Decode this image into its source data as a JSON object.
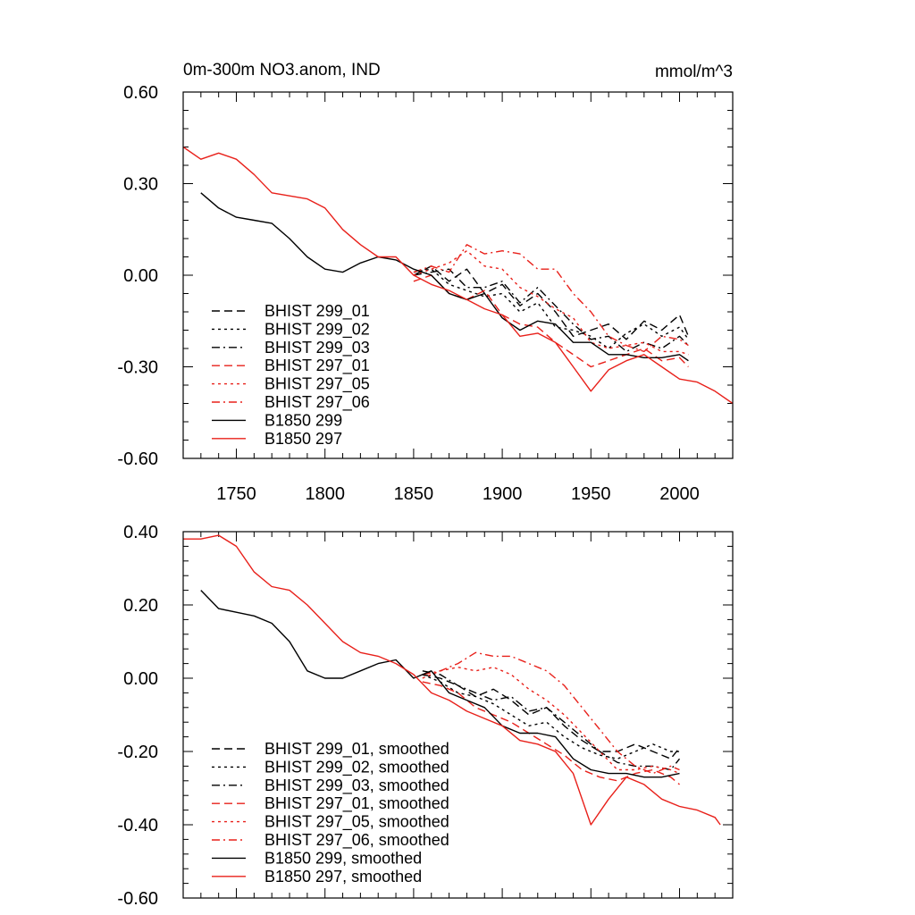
{
  "chart_data": [
    {
      "type": "line",
      "title": "0m-300m NO3.anom, IND",
      "units": "mmol/m^3",
      "xlim": [
        1720,
        2030
      ],
      "ylim": [
        -0.6,
        0.6
      ],
      "x_ticks": [
        1750,
        1800,
        1850,
        1900,
        1950,
        2000
      ],
      "x_tick_labels": [
        "1750",
        "1800",
        "1850",
        "1900",
        "1950",
        "2000"
      ],
      "y_ticks": [
        0.6,
        0.3,
        0.0,
        -0.3,
        -0.6
      ],
      "y_tick_labels": [
        "0.60",
        "0.30",
        "0.00",
        "-0.30",
        "-0.60"
      ],
      "legend_position": "lower-left",
      "series": [
        {
          "name": "BHIST 299_01",
          "color": "#000000",
          "dash": "dash",
          "x": [
            1850,
            1860,
            1870,
            1880,
            1890,
            1900,
            1910,
            1920,
            1930,
            1940,
            1950,
            1960,
            1970,
            1980,
            1990,
            2000,
            2005
          ],
          "values": [
            0.0,
            0.03,
            -0.02,
            0.02,
            -0.06,
            -0.03,
            -0.1,
            -0.06,
            -0.12,
            -0.2,
            -0.18,
            -0.16,
            -0.21,
            -0.15,
            -0.18,
            -0.13,
            -0.2
          ]
        },
        {
          "name": "BHIST 299_02",
          "color": "#000000",
          "dash": "dot",
          "x": [
            1850,
            1860,
            1870,
            1880,
            1890,
            1900,
            1910,
            1920,
            1930,
            1940,
            1950,
            1960,
            1970,
            1980,
            1990,
            2000,
            2005
          ],
          "values": [
            0.01,
            0.02,
            -0.03,
            -0.05,
            -0.07,
            -0.06,
            -0.12,
            -0.09,
            -0.17,
            -0.18,
            -0.2,
            -0.24,
            -0.19,
            -0.16,
            -0.2,
            -0.17,
            -0.21
          ]
        },
        {
          "name": "BHIST 299_03",
          "color": "#000000",
          "dash": "dashdot",
          "x": [
            1850,
            1860,
            1870,
            1880,
            1890,
            1900,
            1910,
            1920,
            1930,
            1940,
            1950,
            1960,
            1970,
            1980,
            1990,
            2000,
            2005
          ],
          "values": [
            0.0,
            0.01,
            0.02,
            -0.04,
            -0.04,
            -0.02,
            -0.09,
            -0.04,
            -0.1,
            -0.16,
            -0.21,
            -0.2,
            -0.25,
            -0.22,
            -0.24,
            -0.2,
            -0.23
          ]
        },
        {
          "name": "BHIST 297_01",
          "color": "#e8201a",
          "dash": "dash",
          "x": [
            1850,
            1860,
            1870,
            1880,
            1890,
            1900,
            1910,
            1920,
            1930,
            1940,
            1950,
            1960,
            1970,
            1980,
            1990,
            2000,
            2005
          ],
          "values": [
            -0.02,
            0.0,
            -0.06,
            -0.08,
            -0.05,
            -0.13,
            -0.16,
            -0.17,
            -0.22,
            -0.26,
            -0.3,
            -0.28,
            -0.26,
            -0.24,
            -0.28,
            -0.27,
            -0.3
          ]
        },
        {
          "name": "BHIST 297_05",
          "color": "#e8201a",
          "dash": "dot",
          "x": [
            1850,
            1860,
            1870,
            1880,
            1890,
            1900,
            1910,
            1920,
            1930,
            1940,
            1950,
            1960,
            1970,
            1980,
            1990,
            2000,
            2005
          ],
          "values": [
            0.0,
            0.02,
            0.04,
            0.08,
            0.03,
            0.02,
            -0.04,
            -0.07,
            -0.11,
            -0.14,
            -0.22,
            -0.24,
            -0.23,
            -0.22,
            -0.25,
            -0.25,
            -0.26
          ]
        },
        {
          "name": "BHIST 297_06",
          "color": "#e8201a",
          "dash": "dashdot",
          "x": [
            1850,
            1860,
            1870,
            1880,
            1890,
            1900,
            1910,
            1920,
            1930,
            1940,
            1950,
            1960,
            1970,
            1980,
            1990,
            2000,
            2005
          ],
          "values": [
            0.01,
            0.03,
            0.01,
            0.1,
            0.07,
            0.08,
            0.07,
            0.02,
            0.02,
            -0.06,
            -0.12,
            -0.2,
            -0.23,
            -0.25,
            -0.2,
            -0.21,
            -0.23
          ]
        },
        {
          "name": "B1850 299",
          "color": "#000000",
          "dash": "solid",
          "x": [
            1730,
            1740,
            1750,
            1760,
            1770,
            1780,
            1790,
            1800,
            1810,
            1820,
            1830,
            1840,
            1850,
            1860,
            1870,
            1880,
            1890,
            1900,
            1910,
            1920,
            1930,
            1940,
            1950,
            1960,
            1970,
            1980,
            1990,
            2000,
            2005
          ],
          "values": [
            0.27,
            0.22,
            0.19,
            0.18,
            0.17,
            0.12,
            0.06,
            0.02,
            0.01,
            0.04,
            0.06,
            0.05,
            0.02,
            0.0,
            -0.06,
            -0.08,
            -0.06,
            -0.14,
            -0.18,
            -0.15,
            -0.16,
            -0.22,
            -0.22,
            -0.26,
            -0.26,
            -0.27,
            -0.27,
            -0.26,
            -0.28
          ]
        },
        {
          "name": "B1850 297",
          "color": "#e8201a",
          "dash": "solid",
          "x": [
            1720,
            1730,
            1740,
            1750,
            1760,
            1770,
            1780,
            1790,
            1800,
            1810,
            1820,
            1830,
            1840,
            1850,
            1860,
            1870,
            1880,
            1890,
            1900,
            1910,
            1920,
            1930,
            1940,
            1950,
            1960,
            1970,
            1980,
            1990,
            2000,
            2010,
            2020,
            2030
          ],
          "values": [
            0.42,
            0.38,
            0.4,
            0.38,
            0.33,
            0.27,
            0.26,
            0.25,
            0.22,
            0.15,
            0.1,
            0.06,
            0.06,
            0.0,
            -0.03,
            -0.05,
            -0.08,
            -0.11,
            -0.13,
            -0.2,
            -0.19,
            -0.22,
            -0.3,
            -0.38,
            -0.31,
            -0.28,
            -0.26,
            -0.3,
            -0.34,
            -0.35,
            -0.38,
            -0.42
          ]
        }
      ]
    },
    {
      "type": "line",
      "title": "",
      "xlim": [
        1720,
        2030
      ],
      "ylim": [
        -0.6,
        0.4
      ],
      "y_ticks": [
        0.4,
        0.2,
        0.0,
        -0.2,
        -0.4,
        -0.6
      ],
      "y_tick_labels": [
        "0.40",
        "0.20",
        "0.00",
        "-0.20",
        "-0.40",
        "-0.60"
      ],
      "legend_position": "lower-left",
      "series": [
        {
          "name": "BHIST 299_01, smoothed",
          "color": "#000000",
          "dash": "dash",
          "x": [
            1855,
            1865,
            1875,
            1885,
            1895,
            1905,
            1915,
            1925,
            1935,
            1945,
            1955,
            1965,
            1975,
            1985,
            1995,
            2000
          ],
          "values": [
            0.01,
            0.0,
            -0.02,
            -0.05,
            -0.03,
            -0.06,
            -0.1,
            -0.08,
            -0.13,
            -0.17,
            -0.2,
            -0.2,
            -0.18,
            -0.2,
            -0.22,
            -0.19
          ]
        },
        {
          "name": "BHIST 299_02, smoothed",
          "color": "#000000",
          "dash": "dot",
          "x": [
            1855,
            1865,
            1875,
            1885,
            1895,
            1905,
            1915,
            1925,
            1935,
            1945,
            1955,
            1965,
            1975,
            1985,
            1995,
            2000
          ],
          "values": [
            0.01,
            -0.01,
            -0.04,
            -0.05,
            -0.07,
            -0.1,
            -0.13,
            -0.12,
            -0.16,
            -0.19,
            -0.21,
            -0.22,
            -0.2,
            -0.18,
            -0.2,
            -0.2
          ]
        },
        {
          "name": "BHIST 299_03, smoothed",
          "color": "#000000",
          "dash": "dashdot",
          "x": [
            1855,
            1865,
            1875,
            1885,
            1895,
            1905,
            1915,
            1925,
            1935,
            1945,
            1955,
            1965,
            1975,
            1985,
            1995,
            2000
          ],
          "values": [
            0.02,
            0.01,
            -0.02,
            -0.04,
            -0.06,
            -0.05,
            -0.09,
            -0.08,
            -0.12,
            -0.16,
            -0.2,
            -0.23,
            -0.24,
            -0.24,
            -0.25,
            -0.22
          ]
        },
        {
          "name": "BHIST 297_01, smoothed",
          "color": "#e8201a",
          "dash": "dash",
          "x": [
            1855,
            1865,
            1875,
            1885,
            1895,
            1905,
            1915,
            1925,
            1935,
            1945,
            1955,
            1965,
            1975,
            1985,
            1995,
            2000
          ],
          "values": [
            -0.01,
            -0.02,
            -0.04,
            -0.08,
            -0.1,
            -0.12,
            -0.15,
            -0.18,
            -0.21,
            -0.25,
            -0.27,
            -0.28,
            -0.26,
            -0.25,
            -0.27,
            -0.29
          ]
        },
        {
          "name": "BHIST 297_05, smoothed",
          "color": "#e8201a",
          "dash": "dot",
          "x": [
            1855,
            1865,
            1875,
            1885,
            1895,
            1905,
            1915,
            1925,
            1935,
            1945,
            1955,
            1965,
            1975,
            1985,
            1995,
            2000
          ],
          "values": [
            0.0,
            0.02,
            0.03,
            0.02,
            0.03,
            0.01,
            -0.03,
            -0.06,
            -0.1,
            -0.15,
            -0.2,
            -0.25,
            -0.25,
            -0.24,
            -0.25,
            -0.26
          ]
        },
        {
          "name": "BHIST 297_06, smoothed",
          "color": "#e8201a",
          "dash": "dashdot",
          "x": [
            1855,
            1865,
            1875,
            1885,
            1895,
            1905,
            1915,
            1925,
            1935,
            1945,
            1955,
            1965,
            1975,
            1985,
            1995,
            2000
          ],
          "values": [
            0.01,
            0.02,
            0.04,
            0.07,
            0.06,
            0.06,
            0.04,
            0.02,
            -0.02,
            -0.08,
            -0.14,
            -0.2,
            -0.24,
            -0.26,
            -0.24,
            -0.25
          ]
        },
        {
          "name": "B1850 299, smoothed",
          "color": "#000000",
          "dash": "solid",
          "x": [
            1730,
            1740,
            1750,
            1760,
            1770,
            1780,
            1790,
            1800,
            1810,
            1820,
            1830,
            1840,
            1850,
            1860,
            1870,
            1880,
            1890,
            1900,
            1910,
            1920,
            1930,
            1940,
            1950,
            1960,
            1970,
            1980,
            1990,
            2000
          ],
          "values": [
            0.24,
            0.19,
            0.18,
            0.17,
            0.15,
            0.1,
            0.02,
            0.0,
            0.0,
            0.02,
            0.04,
            0.05,
            0.0,
            0.02,
            -0.04,
            -0.06,
            -0.08,
            -0.13,
            -0.15,
            -0.15,
            -0.16,
            -0.22,
            -0.25,
            -0.26,
            -0.26,
            -0.27,
            -0.27,
            -0.26
          ]
        },
        {
          "name": "B1850 297, smoothed",
          "color": "#e8201a",
          "dash": "solid",
          "x": [
            1720,
            1730,
            1740,
            1750,
            1760,
            1770,
            1780,
            1790,
            1800,
            1810,
            1820,
            1830,
            1840,
            1850,
            1860,
            1870,
            1880,
            1890,
            1900,
            1910,
            1920,
            1930,
            1940,
            1950,
            1960,
            1970,
            1980,
            1990,
            2000,
            2010,
            2020,
            2023
          ],
          "values": [
            0.38,
            0.38,
            0.39,
            0.36,
            0.29,
            0.25,
            0.24,
            0.2,
            0.15,
            0.1,
            0.07,
            0.06,
            0.04,
            0.01,
            -0.04,
            -0.06,
            -0.09,
            -0.11,
            -0.13,
            -0.17,
            -0.18,
            -0.2,
            -0.26,
            -0.4,
            -0.33,
            -0.27,
            -0.29,
            -0.33,
            -0.35,
            -0.36,
            -0.38,
            -0.4
          ]
        }
      ]
    }
  ]
}
